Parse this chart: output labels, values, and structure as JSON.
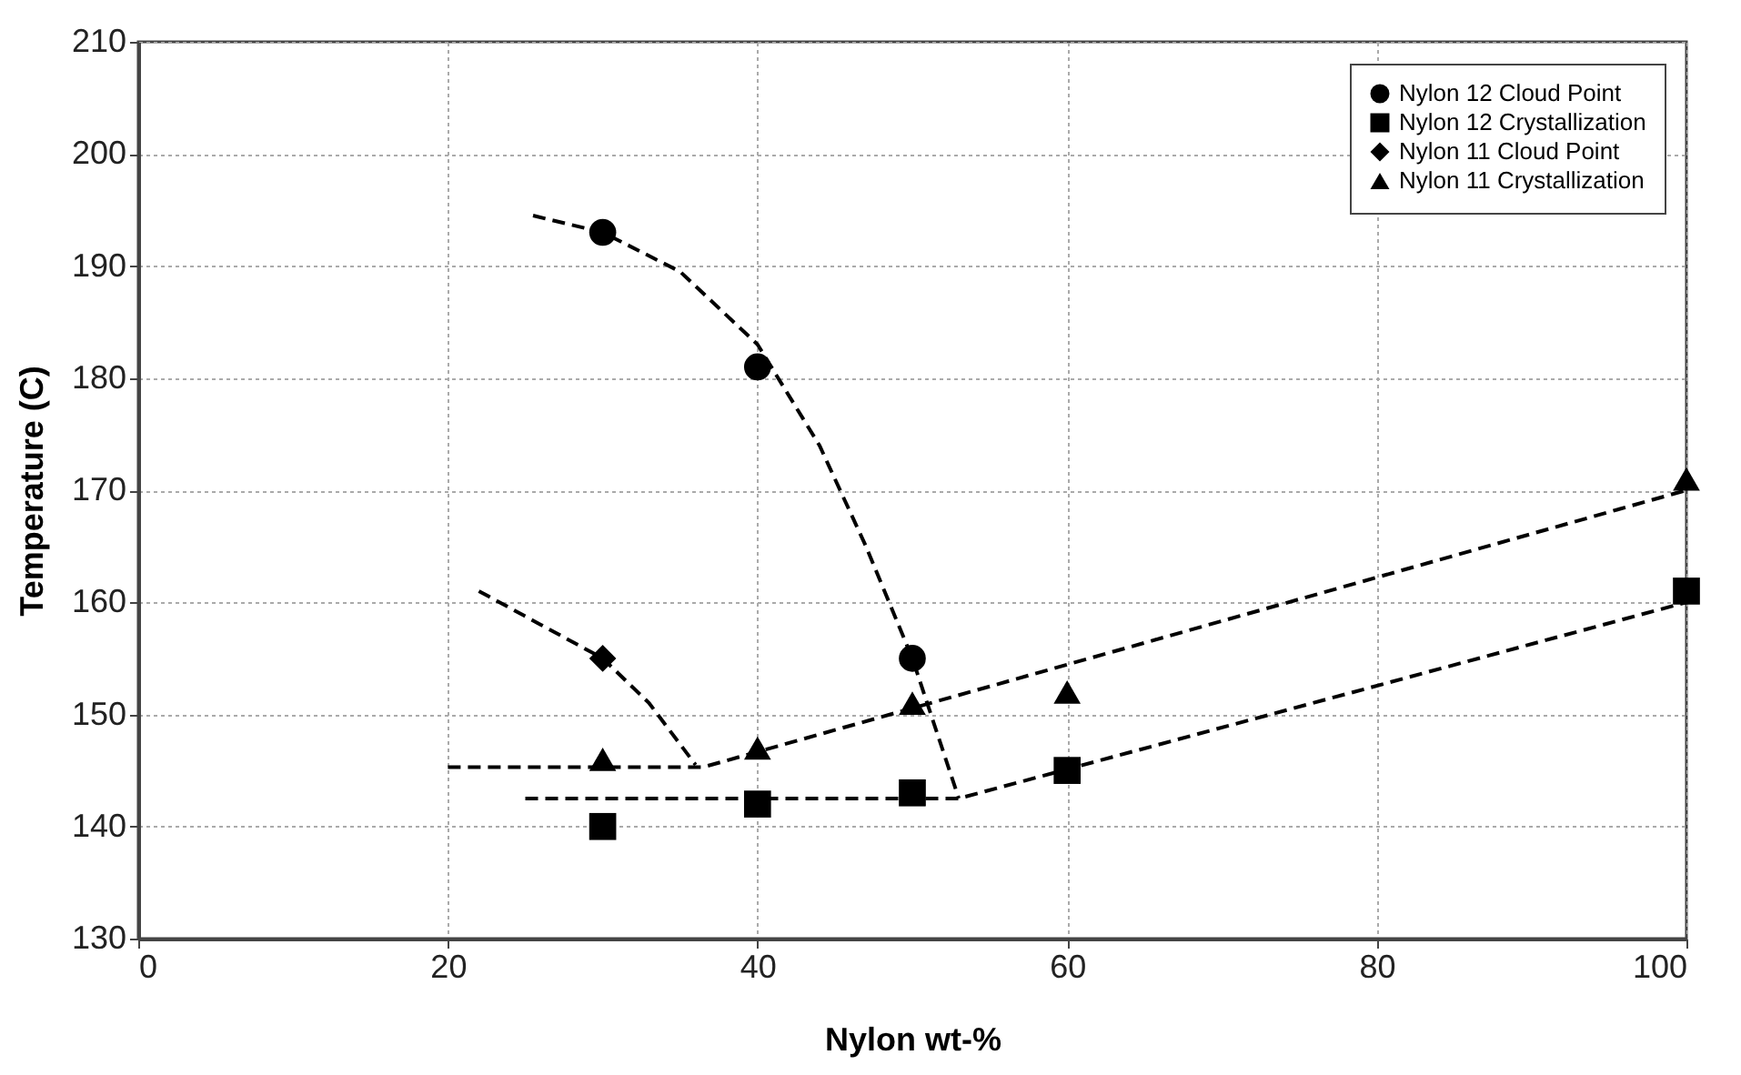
{
  "chart_data": {
    "type": "scatter",
    "xlabel": "Nylon wt-%",
    "ylabel": "Temperature (C)",
    "xlim": [
      0,
      100
    ],
    "xticks": [
      0,
      20,
      40,
      60,
      80,
      100
    ],
    "ylim": [
      130,
      210
    ],
    "yticks": [
      130,
      140,
      150,
      160,
      170,
      180,
      190,
      200,
      210
    ],
    "grid": true,
    "legend": "top right",
    "series": [
      {
        "name": "Nylon 12 Cloud Point",
        "marker": "circle",
        "color": "#000000",
        "x": [
          30,
          40,
          50
        ],
        "values": [
          193,
          181,
          155
        ]
      },
      {
        "name": "Nylon 12 Crystallization",
        "marker": "square",
        "color": "#000000",
        "x": [
          30,
          40,
          50,
          60,
          100
        ],
        "values": [
          140,
          142,
          143,
          145,
          161
        ]
      },
      {
        "name": "Nylon 11 Cloud Point",
        "marker": "diamond",
        "color": "#000000",
        "x": [
          30
        ],
        "values": [
          155
        ]
      },
      {
        "name": "Nylon 11 Crystallization",
        "marker": "triangle",
        "color": "#000000",
        "x": [
          30,
          40,
          50,
          60,
          100
        ],
        "values": [
          146,
          147,
          151,
          152,
          171
        ]
      },
      {
        "type": "line",
        "line_style": "dashed",
        "color": "#000000",
        "x": [
          25.5,
          30,
          35,
          40,
          44,
          47,
          50,
          53
        ],
        "values": [
          194.5,
          193,
          189.5,
          183,
          174,
          165,
          155,
          142.5
        ]
      },
      {
        "type": "line",
        "line_style": "dashed",
        "color": "#000000",
        "x": [
          25,
          53,
          100
        ],
        "values": [
          142.5,
          142.5,
          160
        ]
      },
      {
        "type": "line",
        "line_style": "dashed",
        "color": "#000000",
        "x": [
          22,
          26,
          30,
          33,
          36
        ],
        "values": [
          161,
          158,
          155,
          151,
          145.5
        ]
      },
      {
        "type": "line",
        "line_style": "dashed",
        "color": "#000000",
        "x": [
          20,
          36.5,
          100
        ],
        "values": [
          145.3,
          145.3,
          170
        ]
      }
    ]
  }
}
